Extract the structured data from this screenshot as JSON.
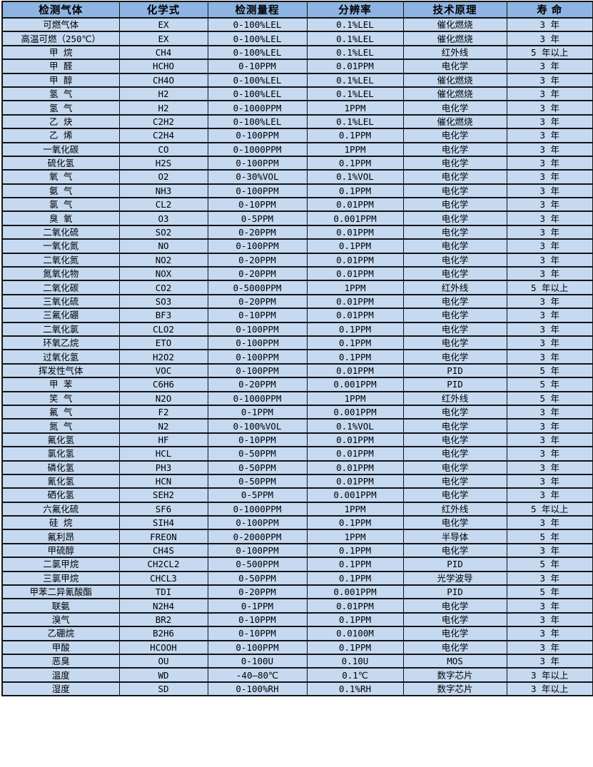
{
  "table": {
    "colors": {
      "header_bg": "#8db4e2",
      "row_bg": "#c5d9f1",
      "border": "#141414",
      "text": "#000000"
    },
    "columns": [
      "检测气体",
      "化学式",
      "检测量程",
      "分辨率",
      "技术原理",
      "寿 命"
    ],
    "column_keys": [
      "gas",
      "formula",
      "range",
      "resolution",
      "principle",
      "lifespan"
    ],
    "rows": [
      [
        "可燃气体",
        "EX",
        "0-100%LEL",
        "0.1%LEL",
        "催化燃烧",
        "3 年"
      ],
      [
        "高温可燃（250℃）",
        "EX",
        "0-100%LEL",
        "0.1%LEL",
        "催化燃烧",
        "3 年"
      ],
      [
        "甲 烷",
        "CH4",
        "0-100%LEL",
        "0.1%LEL",
        "红外线",
        "5 年以上"
      ],
      [
        "甲 醛",
        "HCHO",
        "0-10PPM",
        "0.01PPM",
        "电化学",
        "3 年"
      ],
      [
        "甲 醇",
        "CH4O",
        "0-100%LEL",
        "0.1%LEL",
        "催化燃烧",
        "3 年"
      ],
      [
        "氢 气",
        "H2",
        "0-100%LEL",
        "0.1%LEL",
        "催化燃烧",
        "3 年"
      ],
      [
        "氢 气",
        "H2",
        "0-1000PPM",
        "1PPM",
        "电化学",
        "3 年"
      ],
      [
        "乙 炔",
        "C2H2",
        "0-100%LEL",
        "0.1%LEL",
        "催化燃烧",
        "3 年"
      ],
      [
        "乙 烯",
        "C2H4",
        "0-100PPM",
        "0.1PPM",
        "电化学",
        "3 年"
      ],
      [
        "一氧化碳",
        "CO",
        "0-1000PPM",
        "1PPM",
        "电化学",
        "3 年"
      ],
      [
        "硫化氢",
        "H2S",
        "0-100PPM",
        "0.1PPM",
        "电化学",
        "3 年"
      ],
      [
        "氧 气",
        "O2",
        "0-30%VOL",
        "0.1%VOL",
        "电化学",
        "3 年"
      ],
      [
        "氨 气",
        "NH3",
        "0-100PPM",
        "0.1PPM",
        "电化学",
        "3 年"
      ],
      [
        "氯 气",
        "CL2",
        "0-10PPM",
        "0.01PPM",
        "电化学",
        "3 年"
      ],
      [
        "臭 氧",
        "O3",
        "0-5PPM",
        "0.001PPM",
        "电化学",
        "3 年"
      ],
      [
        "二氧化硫",
        "SO2",
        "0-20PPM",
        "0.01PPM",
        "电化学",
        "3 年"
      ],
      [
        "一氧化氮",
        "NO",
        "0-100PPM",
        "0.1PPM",
        "电化学",
        "3 年"
      ],
      [
        "二氧化氮",
        "NO2",
        "0-20PPM",
        "0.01PPM",
        "电化学",
        "3 年"
      ],
      [
        "氮氧化物",
        "NOX",
        "0-20PPM",
        "0.01PPM",
        "电化学",
        "3 年"
      ],
      [
        "二氧化碳",
        "CO2",
        "0-5000PPM",
        "1PPM",
        "红外线",
        "5 年以上"
      ],
      [
        "三氧化硫",
        "SO3",
        "0-20PPM",
        "0.01PPM",
        "电化学",
        "3 年"
      ],
      [
        "三氟化硼",
        "BF3",
        "0-10PPM",
        "0.01PPM",
        "电化学",
        "3 年"
      ],
      [
        "二氧化氯",
        "CLO2",
        "0-100PPM",
        "0.1PPM",
        "电化学",
        "3 年"
      ],
      [
        "环氧乙烷",
        "ETO",
        "0-100PPM",
        "0.1PPM",
        "电化学",
        "3 年"
      ],
      [
        "过氧化氢",
        "H2O2",
        "0-100PPM",
        "0.1PPM",
        "电化学",
        "3 年"
      ],
      [
        "挥发性气体",
        "VOC",
        "0-100PPM",
        "0.01PPM",
        "PID",
        "5 年"
      ],
      [
        "甲 苯",
        "C6H6",
        "0-20PPM",
        "0.001PPM",
        "PID",
        "5 年"
      ],
      [
        "笑 气",
        "N2O",
        "0-1000PPM",
        "1PPM",
        "红外线",
        "5 年"
      ],
      [
        "氟 气",
        "F2",
        "0-1PPM",
        "0.001PPM",
        "电化学",
        "3 年"
      ],
      [
        "氮 气",
        "N2",
        "0-100%VOL",
        "0.1%VOL",
        "电化学",
        "3 年"
      ],
      [
        "氟化氢",
        "HF",
        "0-10PPM",
        "0.01PPM",
        "电化学",
        "3 年"
      ],
      [
        "氯化氢",
        "HCL",
        "0-50PPM",
        "0.01PPM",
        "电化学",
        "3 年"
      ],
      [
        "磷化氢",
        "PH3",
        "0-50PPM",
        "0.01PPM",
        "电化学",
        "3 年"
      ],
      [
        "氰化氢",
        "HCN",
        "0-50PPM",
        "0.01PPM",
        "电化学",
        "3 年"
      ],
      [
        "硒化氢",
        "SEH2",
        "0-5PPM",
        "0.001PPM",
        "电化学",
        "3 年"
      ],
      [
        "六氟化硫",
        "SF6",
        "0-1000PPM",
        "1PPM",
        "红外线",
        "5 年以上"
      ],
      [
        "硅 烷",
        "SIH4",
        "0-100PPM",
        "0.1PPM",
        "电化学",
        "3 年"
      ],
      [
        "氟利昂",
        "FREON",
        "0-2000PPM",
        "1PPM",
        "半导体",
        "5 年"
      ],
      [
        "甲硫醇",
        "CH4S",
        "0-100PPM",
        "0.1PPM",
        "电化学",
        "3 年"
      ],
      [
        "二氯甲烷",
        "CH2CL2",
        "0-500PPM",
        "0.1PPM",
        "PID",
        "5 年"
      ],
      [
        "三氯甲烷",
        "CHCL3",
        "0-50PPM",
        "0.1PPM",
        "光学波导",
        "3 年"
      ],
      [
        "甲苯二异氰酸酯",
        "TDI",
        "0-20PPM",
        "0.001PPM",
        "PID",
        "5 年"
      ],
      [
        "联氨",
        "N2H4",
        "0-1PPM",
        "0.01PPM",
        "电化学",
        "3 年"
      ],
      [
        "溴气",
        "BR2",
        "0-10PPM",
        "0.1PPM",
        "电化学",
        "3 年"
      ],
      [
        "乙硼烷",
        "B2H6",
        "0-10PPM",
        "0.0100M",
        "电化学",
        "3 年"
      ],
      [
        "甲酸",
        "HCOOH",
        "0-100PPM",
        "0.1PPM",
        "电化学",
        "3 年"
      ],
      [
        "恶臭",
        "OU",
        "0-100U",
        "0.10U",
        "MOS",
        "3 年"
      ],
      [
        "温度",
        "WD",
        "-40—80℃",
        "0.1℃",
        "数字芯片",
        "3 年以上"
      ],
      [
        "湿度",
        "SD",
        "0-100%RH",
        "0.1%RH",
        "数字芯片",
        "3 年以上"
      ]
    ]
  }
}
